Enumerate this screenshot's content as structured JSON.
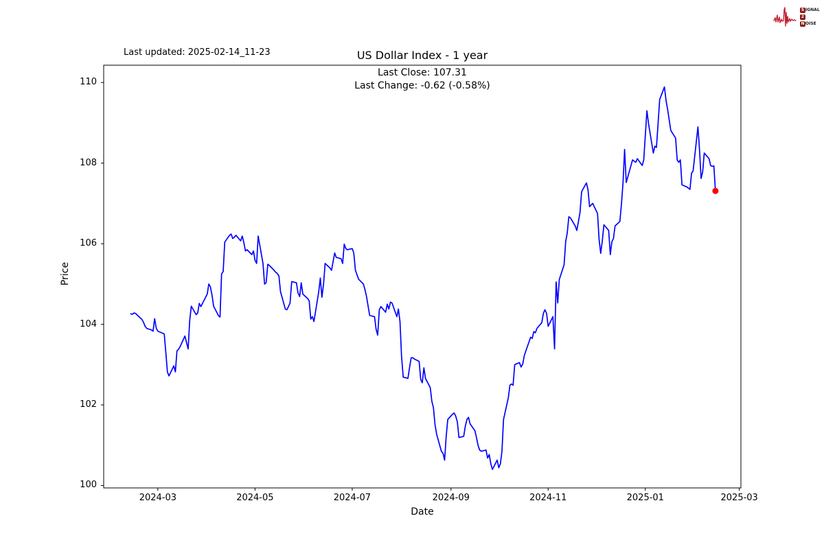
{
  "page": {
    "background": "#ffffff"
  },
  "header": {
    "last_updated": "Last updated: 2025-02-14_11-23"
  },
  "logo": {
    "name": "Signal 2 Noise",
    "line1_box": "S",
    "line1_rest": "IGNAL",
    "line2_box": "2",
    "line2_rest": "",
    "line3_box": "N",
    "line3_rest": "OISE",
    "box_color": "#8b1a1a",
    "wave_color": "#c41f2f"
  },
  "chart_data": {
    "type": "line",
    "title": "US Dollar Index - 1 year",
    "subtitle_lines": [
      "Last Close: 107.31",
      "Last Change: -0.62 (-0.58%)"
    ],
    "xlabel": "Date",
    "ylabel": "Price",
    "line_color": "#0000ff",
    "marker_color": "#ff0000",
    "axis_color": "#000000",
    "grid": false,
    "legend": "none",
    "x_tick_labels": [
      "2024-03",
      "2024-05",
      "2024-07",
      "2024-09",
      "2024-11",
      "2025-01",
      "2025-03"
    ],
    "y_tick_labels": [
      100,
      102,
      104,
      106,
      108,
      110
    ],
    "xlim": [
      "2024-01-27",
      "2025-03-02"
    ],
    "ylim": [
      99.94,
      110.43
    ],
    "last_close": 107.31,
    "last_change": -0.62,
    "last_change_pct": -0.58,
    "series": [
      {
        "name": "US Dollar Index",
        "points": [
          [
            "2024-02-13",
            104.26
          ],
          [
            "2024-02-14",
            104.25
          ],
          [
            "2024-02-15",
            104.28
          ],
          [
            "2024-02-16",
            104.27
          ],
          [
            "2024-02-20",
            104.12
          ],
          [
            "2024-02-21",
            104.05
          ],
          [
            "2024-02-22",
            103.95
          ],
          [
            "2024-02-23",
            103.9
          ],
          [
            "2024-02-26",
            103.86
          ],
          [
            "2024-02-27",
            103.83
          ],
          [
            "2024-02-28",
            104.14
          ],
          [
            "2024-02-29",
            103.9
          ],
          [
            "2024-03-01",
            103.83
          ],
          [
            "2024-03-04",
            103.78
          ],
          [
            "2024-03-05",
            103.76
          ],
          [
            "2024-03-06",
            103.3
          ],
          [
            "2024-03-07",
            102.82
          ],
          [
            "2024-03-08",
            102.72
          ],
          [
            "2024-03-11",
            102.97
          ],
          [
            "2024-03-12",
            102.82
          ],
          [
            "2024-03-13",
            103.34
          ],
          [
            "2024-03-14",
            103.38
          ],
          [
            "2024-03-15",
            103.45
          ],
          [
            "2024-03-18",
            103.71
          ],
          [
            "2024-03-19",
            103.55
          ],
          [
            "2024-03-20",
            103.39
          ],
          [
            "2024-03-21",
            104.1
          ],
          [
            "2024-03-22",
            104.45
          ],
          [
            "2024-03-25",
            104.24
          ],
          [
            "2024-03-26",
            104.28
          ],
          [
            "2024-03-27",
            104.52
          ],
          [
            "2024-03-28",
            104.44
          ],
          [
            "2024-04-01",
            104.75
          ],
          [
            "2024-04-02",
            105.0
          ],
          [
            "2024-04-03",
            104.93
          ],
          [
            "2024-04-04",
            104.72
          ],
          [
            "2024-04-05",
            104.45
          ],
          [
            "2024-04-08",
            104.22
          ],
          [
            "2024-04-09",
            104.18
          ],
          [
            "2024-04-10",
            105.25
          ],
          [
            "2024-04-11",
            105.31
          ],
          [
            "2024-04-12",
            106.04
          ],
          [
            "2024-04-15",
            106.21
          ],
          [
            "2024-04-16",
            106.24
          ],
          [
            "2024-04-17",
            106.13
          ],
          [
            "2024-04-18",
            106.16
          ],
          [
            "2024-04-19",
            106.21
          ],
          [
            "2024-04-22",
            106.07
          ],
          [
            "2024-04-23",
            106.19
          ],
          [
            "2024-04-24",
            106.02
          ],
          [
            "2024-04-25",
            105.82
          ],
          [
            "2024-04-26",
            105.85
          ],
          [
            "2024-04-29",
            105.73
          ],
          [
            "2024-04-30",
            105.82
          ],
          [
            "2024-05-01",
            105.59
          ],
          [
            "2024-05-02",
            105.51
          ],
          [
            "2024-05-03",
            106.19
          ],
          [
            "2024-05-06",
            105.51
          ],
          [
            "2024-05-07",
            105.0
          ],
          [
            "2024-05-08",
            105.03
          ],
          [
            "2024-05-09",
            105.49
          ],
          [
            "2024-05-10",
            105.46
          ],
          [
            "2024-05-13",
            105.34
          ],
          [
            "2024-05-14",
            105.29
          ],
          [
            "2024-05-15",
            105.26
          ],
          [
            "2024-05-16",
            105.2
          ],
          [
            "2024-05-17",
            104.81
          ],
          [
            "2024-05-20",
            104.38
          ],
          [
            "2024-05-21",
            104.36
          ],
          [
            "2024-05-22",
            104.44
          ],
          [
            "2024-05-23",
            104.53
          ],
          [
            "2024-05-24",
            105.06
          ],
          [
            "2024-05-27",
            105.03
          ],
          [
            "2024-05-28",
            104.78
          ],
          [
            "2024-05-29",
            104.69
          ],
          [
            "2024-05-30",
            105.03
          ],
          [
            "2024-05-31",
            104.75
          ],
          [
            "2024-06-03",
            104.64
          ],
          [
            "2024-06-04",
            104.58
          ],
          [
            "2024-06-05",
            104.13
          ],
          [
            "2024-06-06",
            104.19
          ],
          [
            "2024-06-07",
            104.07
          ],
          [
            "2024-06-10",
            104.81
          ],
          [
            "2024-06-11",
            105.15
          ],
          [
            "2024-06-12",
            104.67
          ],
          [
            "2024-06-13",
            105.0
          ],
          [
            "2024-06-14",
            105.51
          ],
          [
            "2024-06-17",
            105.4
          ],
          [
            "2024-06-18",
            105.34
          ],
          [
            "2024-06-20",
            105.77
          ],
          [
            "2024-06-21",
            105.66
          ],
          [
            "2024-06-24",
            105.63
          ],
          [
            "2024-06-25",
            105.51
          ],
          [
            "2024-06-26",
            105.99
          ],
          [
            "2024-06-27",
            105.88
          ],
          [
            "2024-06-28",
            105.85
          ],
          [
            "2024-07-01",
            105.88
          ],
          [
            "2024-07-02",
            105.77
          ],
          [
            "2024-07-03",
            105.34
          ],
          [
            "2024-07-05",
            105.12
          ],
          [
            "2024-07-08",
            105.0
          ],
          [
            "2024-07-09",
            104.86
          ],
          [
            "2024-07-10",
            104.69
          ],
          [
            "2024-07-11",
            104.45
          ],
          [
            "2024-07-12",
            104.22
          ],
          [
            "2024-07-15",
            104.19
          ],
          [
            "2024-07-16",
            103.88
          ],
          [
            "2024-07-17",
            103.73
          ],
          [
            "2024-07-18",
            104.36
          ],
          [
            "2024-07-19",
            104.44
          ],
          [
            "2024-07-22",
            104.3
          ],
          [
            "2024-07-23",
            104.5
          ],
          [
            "2024-07-24",
            104.38
          ],
          [
            "2024-07-25",
            104.55
          ],
          [
            "2024-07-26",
            104.53
          ],
          [
            "2024-07-29",
            104.19
          ],
          [
            "2024-07-30",
            104.38
          ],
          [
            "2024-07-31",
            104.07
          ],
          [
            "2024-08-01",
            103.2
          ],
          [
            "2024-08-02",
            102.69
          ],
          [
            "2024-08-05",
            102.66
          ],
          [
            "2024-08-06",
            102.92
          ],
          [
            "2024-08-07",
            103.17
          ],
          [
            "2024-08-08",
            103.17
          ],
          [
            "2024-08-09",
            103.14
          ],
          [
            "2024-08-12",
            103.08
          ],
          [
            "2024-08-13",
            102.63
          ],
          [
            "2024-08-14",
            102.55
          ],
          [
            "2024-08-15",
            102.92
          ],
          [
            "2024-08-16",
            102.66
          ],
          [
            "2024-08-19",
            102.43
          ],
          [
            "2024-08-20",
            102.09
          ],
          [
            "2024-08-21",
            101.93
          ],
          [
            "2024-08-22",
            101.5
          ],
          [
            "2024-08-23",
            101.27
          ],
          [
            "2024-08-26",
            100.85
          ],
          [
            "2024-08-27",
            100.8
          ],
          [
            "2024-08-28",
            100.63
          ],
          [
            "2024-08-29",
            101.22
          ],
          [
            "2024-08-30",
            101.64
          ],
          [
            "2024-09-02",
            101.77
          ],
          [
            "2024-09-03",
            101.8
          ],
          [
            "2024-09-04",
            101.72
          ],
          [
            "2024-09-05",
            101.58
          ],
          [
            "2024-09-06",
            101.19
          ],
          [
            "2024-09-09",
            101.22
          ],
          [
            "2024-09-10",
            101.47
          ],
          [
            "2024-09-11",
            101.64
          ],
          [
            "2024-09-12",
            101.69
          ],
          [
            "2024-09-13",
            101.53
          ],
          [
            "2024-09-16",
            101.36
          ],
          [
            "2024-09-17",
            101.19
          ],
          [
            "2024-09-18",
            101.0
          ],
          [
            "2024-09-19",
            100.88
          ],
          [
            "2024-09-20",
            100.85
          ],
          [
            "2024-09-23",
            100.88
          ],
          [
            "2024-09-24",
            100.68
          ],
          [
            "2024-09-25",
            100.77
          ],
          [
            "2024-09-26",
            100.54
          ],
          [
            "2024-09-27",
            100.4
          ],
          [
            "2024-09-30",
            100.63
          ],
          [
            "2024-10-01",
            100.44
          ],
          [
            "2024-10-02",
            100.54
          ],
          [
            "2024-10-03",
            100.85
          ],
          [
            "2024-10-04",
            101.64
          ],
          [
            "2024-10-07",
            102.18
          ],
          [
            "2024-10-08",
            102.49
          ],
          [
            "2024-10-09",
            102.52
          ],
          [
            "2024-10-10",
            102.49
          ],
          [
            "2024-10-11",
            103.0
          ],
          [
            "2024-10-14",
            103.05
          ],
          [
            "2024-10-15",
            102.94
          ],
          [
            "2024-10-16",
            103.01
          ],
          [
            "2024-10-17",
            103.22
          ],
          [
            "2024-10-18",
            103.34
          ],
          [
            "2024-10-21",
            103.68
          ],
          [
            "2024-10-22",
            103.65
          ],
          [
            "2024-10-23",
            103.82
          ],
          [
            "2024-10-24",
            103.79
          ],
          [
            "2024-10-25",
            103.9
          ],
          [
            "2024-10-28",
            104.04
          ],
          [
            "2024-10-29",
            104.27
          ],
          [
            "2024-10-30",
            104.36
          ],
          [
            "2024-10-31",
            104.27
          ],
          [
            "2024-11-01",
            103.95
          ],
          [
            "2024-11-04",
            104.19
          ],
          [
            "2024-11-05",
            103.39
          ],
          [
            "2024-11-06",
            105.05
          ],
          [
            "2024-11-07",
            104.53
          ],
          [
            "2024-11-08",
            105.11
          ],
          [
            "2024-11-11",
            105.48
          ],
          [
            "2024-11-12",
            106.05
          ],
          [
            "2024-11-13",
            106.27
          ],
          [
            "2024-11-14",
            106.67
          ],
          [
            "2024-11-15",
            106.64
          ],
          [
            "2024-11-18",
            106.44
          ],
          [
            "2024-11-19",
            106.33
          ],
          [
            "2024-11-20",
            106.55
          ],
          [
            "2024-11-21",
            106.78
          ],
          [
            "2024-11-22",
            107.29
          ],
          [
            "2024-11-25",
            107.51
          ],
          [
            "2024-11-26",
            107.34
          ],
          [
            "2024-11-27",
            106.92
          ],
          [
            "2024-11-29",
            107.0
          ],
          [
            "2024-12-02",
            106.75
          ],
          [
            "2024-12-03",
            106.1
          ],
          [
            "2024-12-04",
            105.76
          ],
          [
            "2024-12-05",
            106.08
          ],
          [
            "2024-12-06",
            106.47
          ],
          [
            "2024-12-09",
            106.33
          ],
          [
            "2024-12-10",
            105.73
          ],
          [
            "2024-12-11",
            106.05
          ],
          [
            "2024-12-12",
            106.13
          ],
          [
            "2024-12-13",
            106.44
          ],
          [
            "2024-12-16",
            106.55
          ],
          [
            "2024-12-17",
            106.98
          ],
          [
            "2024-12-18",
            107.51
          ],
          [
            "2024-12-19",
            108.34
          ],
          [
            "2024-12-20",
            107.52
          ],
          [
            "2024-12-23",
            107.94
          ],
          [
            "2024-12-24",
            108.08
          ],
          [
            "2024-12-26",
            108.02
          ],
          [
            "2024-12-27",
            108.11
          ],
          [
            "2024-12-30",
            107.94
          ],
          [
            "2024-12-31",
            108.08
          ],
          [
            "2025-01-02",
            109.3
          ],
          [
            "2025-01-03",
            108.99
          ],
          [
            "2025-01-06",
            108.25
          ],
          [
            "2025-01-07",
            108.42
          ],
          [
            "2025-01-08",
            108.39
          ],
          [
            "2025-01-09",
            108.99
          ],
          [
            "2025-01-10",
            109.58
          ],
          [
            "2025-01-13",
            109.89
          ],
          [
            "2025-01-14",
            109.55
          ],
          [
            "2025-01-15",
            109.33
          ],
          [
            "2025-01-16",
            109.07
          ],
          [
            "2025-01-17",
            108.81
          ],
          [
            "2025-01-20",
            108.62
          ],
          [
            "2025-01-21",
            108.08
          ],
          [
            "2025-01-22",
            108.02
          ],
          [
            "2025-01-23",
            108.08
          ],
          [
            "2025-01-24",
            107.46
          ],
          [
            "2025-01-27",
            107.41
          ],
          [
            "2025-01-28",
            107.38
          ],
          [
            "2025-01-29",
            107.35
          ],
          [
            "2025-01-30",
            107.75
          ],
          [
            "2025-01-31",
            107.81
          ],
          [
            "2025-02-03",
            108.9
          ],
          [
            "2025-02-04",
            108.34
          ],
          [
            "2025-02-05",
            107.62
          ],
          [
            "2025-02-06",
            107.78
          ],
          [
            "2025-02-07",
            108.25
          ],
          [
            "2025-02-10",
            108.11
          ],
          [
            "2025-02-11",
            107.94
          ],
          [
            "2025-02-12",
            107.92
          ],
          [
            "2025-02-13",
            107.93
          ],
          [
            "2025-02-14",
            107.31
          ]
        ]
      }
    ]
  }
}
